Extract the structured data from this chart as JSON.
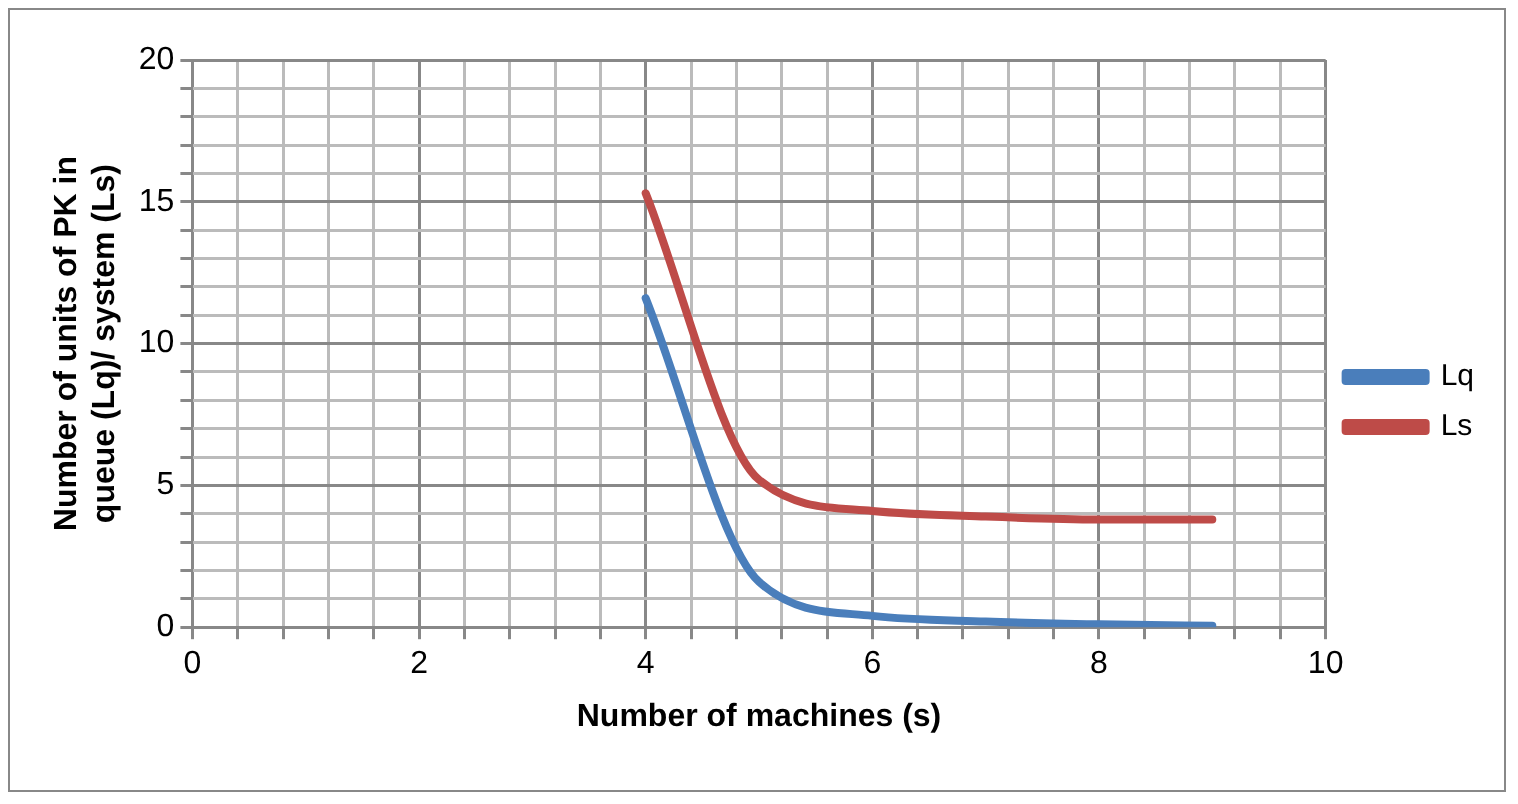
{
  "chart_data": {
    "type": "line",
    "xlabel": "Number of machines (s)",
    "ylabel": "Number of units of PK in queue (Lq)/ system (Ls)",
    "x": [
      4,
      5,
      6,
      7,
      8,
      9
    ],
    "series": [
      {
        "name": "Lq",
        "color": "#4a7ebb",
        "values": [
          11.6,
          1.6,
          0.4,
          0.2,
          0.1,
          0.05
        ]
      },
      {
        "name": "Ls",
        "color": "#be4b48",
        "values": [
          15.3,
          5.2,
          4.1,
          3.9,
          3.8,
          3.8
        ]
      }
    ],
    "xlim": [
      0,
      10
    ],
    "ylim": [
      0,
      20
    ],
    "xticks": [
      0,
      {
        "value": 0.4,
        "label": null
      },
      {
        "value": 0.8,
        "label": null
      },
      {
        "value": 1.2,
        "label": null
      },
      {
        "value": 1.6,
        "label": null
      },
      2,
      {
        "value": 2.4,
        "label": null
      },
      {
        "value": 2.8,
        "label": null
      },
      {
        "value": 3.2,
        "label": null
      },
      {
        "value": 3.6,
        "label": null
      },
      4,
      {
        "value": 4.4,
        "label": null
      },
      {
        "value": 4.8,
        "label": null
      },
      {
        "value": 5.2,
        "label": null
      },
      {
        "value": 5.6,
        "label": null
      },
      6,
      {
        "value": 6.4,
        "label": null
      },
      {
        "value": 6.8,
        "label": null
      },
      {
        "value": 7.2,
        "label": null
      },
      {
        "value": 7.6,
        "label": null
      },
      8,
      {
        "value": 8.4,
        "label": null
      },
      {
        "value": 8.8,
        "label": null
      },
      {
        "value": 9.2,
        "label": null
      },
      {
        "value": 9.6,
        "label": null
      },
      10
    ],
    "yticks": [
      0,
      {
        "value": 1,
        "label": null
      },
      {
        "value": 2,
        "label": null
      },
      {
        "value": 3,
        "label": null
      },
      {
        "value": 4,
        "label": null
      },
      5,
      {
        "value": 6,
        "label": null
      },
      {
        "value": 7,
        "label": null
      },
      {
        "value": 8,
        "label": null
      },
      {
        "value": 9,
        "label": null
      },
      10,
      {
        "value": 11,
        "label": null
      },
      {
        "value": 12,
        "label": null
      },
      {
        "value": 13,
        "label": null
      },
      {
        "value": 14,
        "label": null
      },
      15,
      {
        "value": 16,
        "label": null
      },
      {
        "value": 17,
        "label": null
      },
      {
        "value": 18,
        "label": null
      },
      {
        "value": 19,
        "label": null
      },
      20
    ],
    "grid": true,
    "legend": "right",
    "marker": "none",
    "line_style": "solid"
  }
}
